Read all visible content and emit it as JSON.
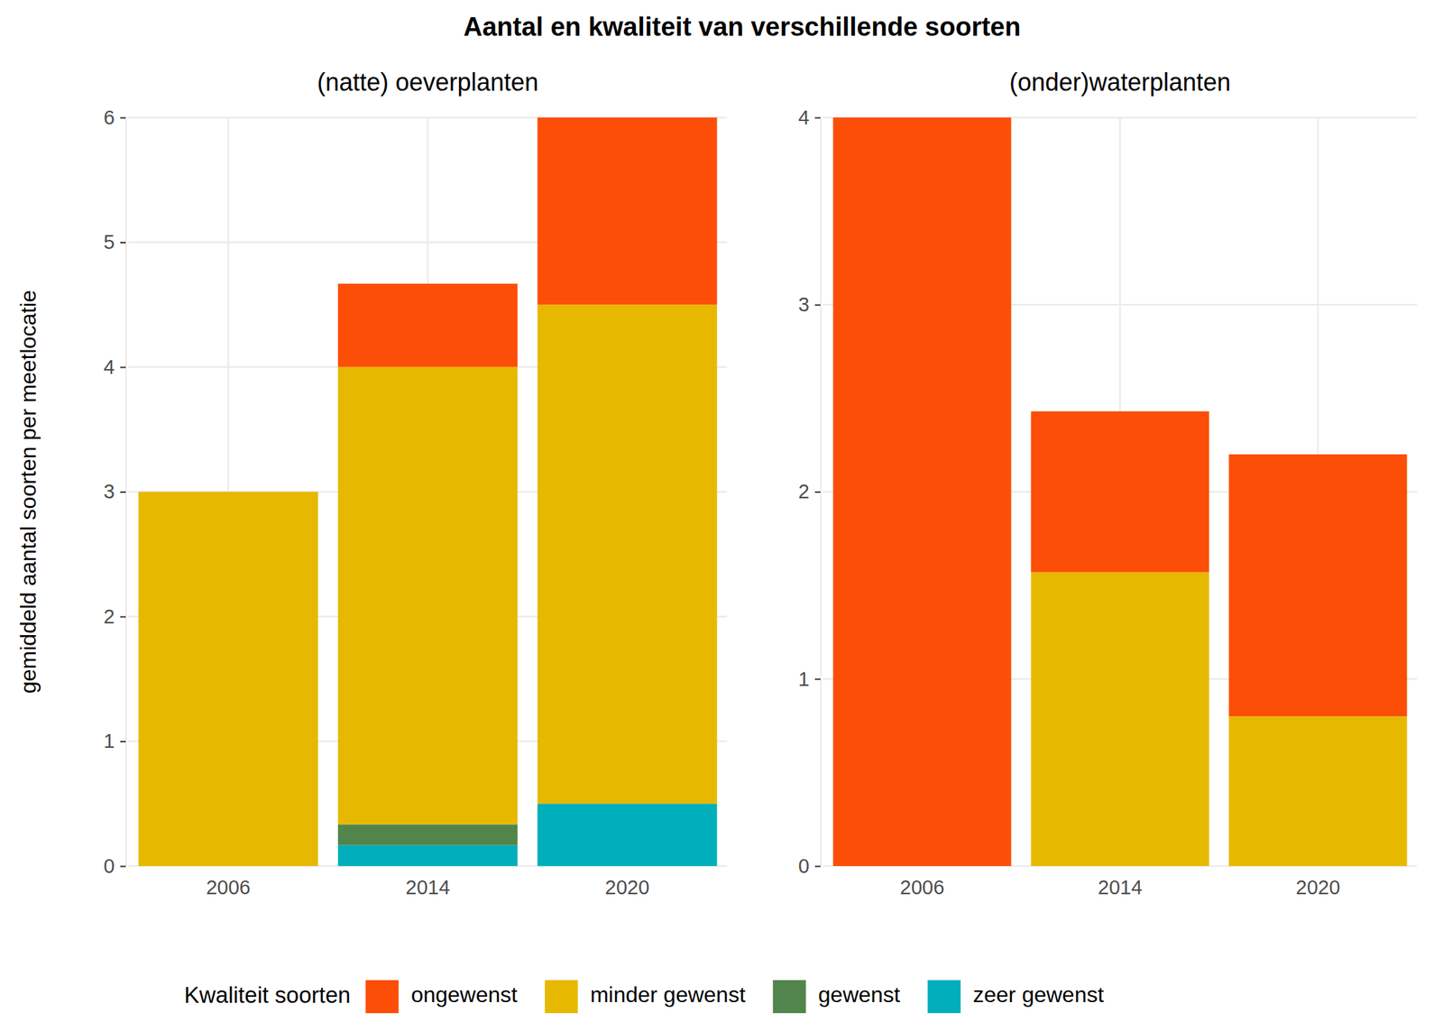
{
  "chart_data": {
    "type": "bar",
    "stacked": true,
    "grid": true,
    "legend": "bottom",
    "title": "Aantal en kwaliteit van verschillende soorten",
    "y_label": "gemiddeld aantal soorten per meetlocatie",
    "legend_title": "Kwaliteit soorten",
    "categories": [
      "2006",
      "2014",
      "2020"
    ],
    "series": [
      {
        "name": "ongewenst",
        "color": "#FC4E07"
      },
      {
        "name": "minder gewenst",
        "color": "#E7B800"
      },
      {
        "name": "gewenst",
        "color": "#52854C"
      },
      {
        "name": "zeer gewenst",
        "color": "#00AFBB"
      }
    ],
    "panels": [
      {
        "subtitle": "(natte) oeverplanten",
        "ylim": [
          0,
          6
        ],
        "yticks": [
          0,
          1,
          2,
          3,
          4,
          5,
          6
        ],
        "values": [
          [
            0,
            0.667,
            1.5
          ],
          [
            3,
            3.667,
            4
          ],
          [
            0,
            0.167,
            0
          ],
          [
            0,
            0.167,
            0.5
          ]
        ]
      },
      {
        "subtitle": "(onder)waterplanten",
        "ylim": [
          0,
          4
        ],
        "yticks": [
          0,
          1,
          2,
          3,
          4
        ],
        "values": [
          [
            4,
            0.86,
            1.4
          ],
          [
            0,
            1.57,
            0.8
          ],
          [
            0,
            0,
            0
          ],
          [
            0,
            0,
            0
          ]
        ]
      }
    ]
  }
}
